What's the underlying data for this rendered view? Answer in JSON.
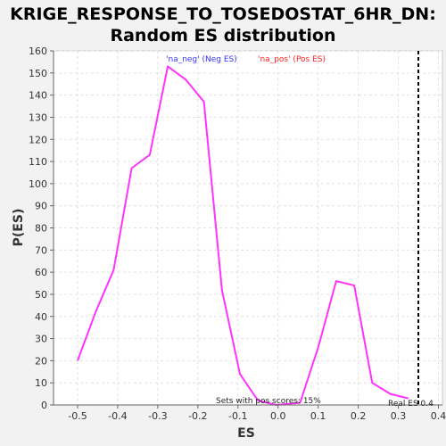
{
  "chart_data": {
    "type": "line",
    "title": "KRIGE_RESPONSE_TO_TOSEDOSTAT_6HR_DN:",
    "subtitle": "Random ES distribution",
    "xlabel": "ES",
    "ylabel": "P(ES)",
    "xlim": [
      -0.56,
      0.41
    ],
    "ylim": [
      0,
      160
    ],
    "xticks": [
      -0.5,
      -0.4,
      -0.3,
      -0.2,
      -0.1,
      0,
      0.1,
      0.2,
      0.3,
      0.4
    ],
    "xtick_labels": [
      "-0.5",
      "-0.4",
      "-0.3",
      "-0.2",
      "-0.1",
      "0.0",
      "0.1",
      "0.2",
      "0.3",
      "0.4"
    ],
    "yticks": [
      0,
      10,
      20,
      30,
      40,
      50,
      60,
      70,
      80,
      90,
      100,
      110,
      120,
      130,
      140,
      150,
      160
    ],
    "grid": true,
    "legend": [
      {
        "label": "'na_neg' (Neg ES)",
        "color": "#3333ff"
      },
      {
        "label": "'na_pos' (Pos ES)",
        "color": "#ff2222"
      }
    ],
    "series": [
      {
        "color": "#ff33ff",
        "x": [
          -0.5,
          -0.455,
          -0.41,
          -0.365,
          -0.32,
          -0.275,
          -0.23,
          -0.185,
          -0.14,
          -0.095,
          -0.05,
          -0.005,
          0.055,
          0.1,
          0.145,
          0.19,
          0.235,
          0.28,
          0.325
        ],
        "y": [
          20,
          42,
          61,
          107,
          113,
          153,
          147,
          137,
          52,
          14,
          2,
          0,
          1,
          26,
          56,
          54,
          10,
          5,
          3
        ]
      }
    ],
    "vline": {
      "x": 0.35,
      "style": "dashed",
      "color": "#000000"
    },
    "annotations": {
      "pos_scores": "Sets with pos scores: 15%",
      "real_es": "Real ES 0.4"
    }
  }
}
